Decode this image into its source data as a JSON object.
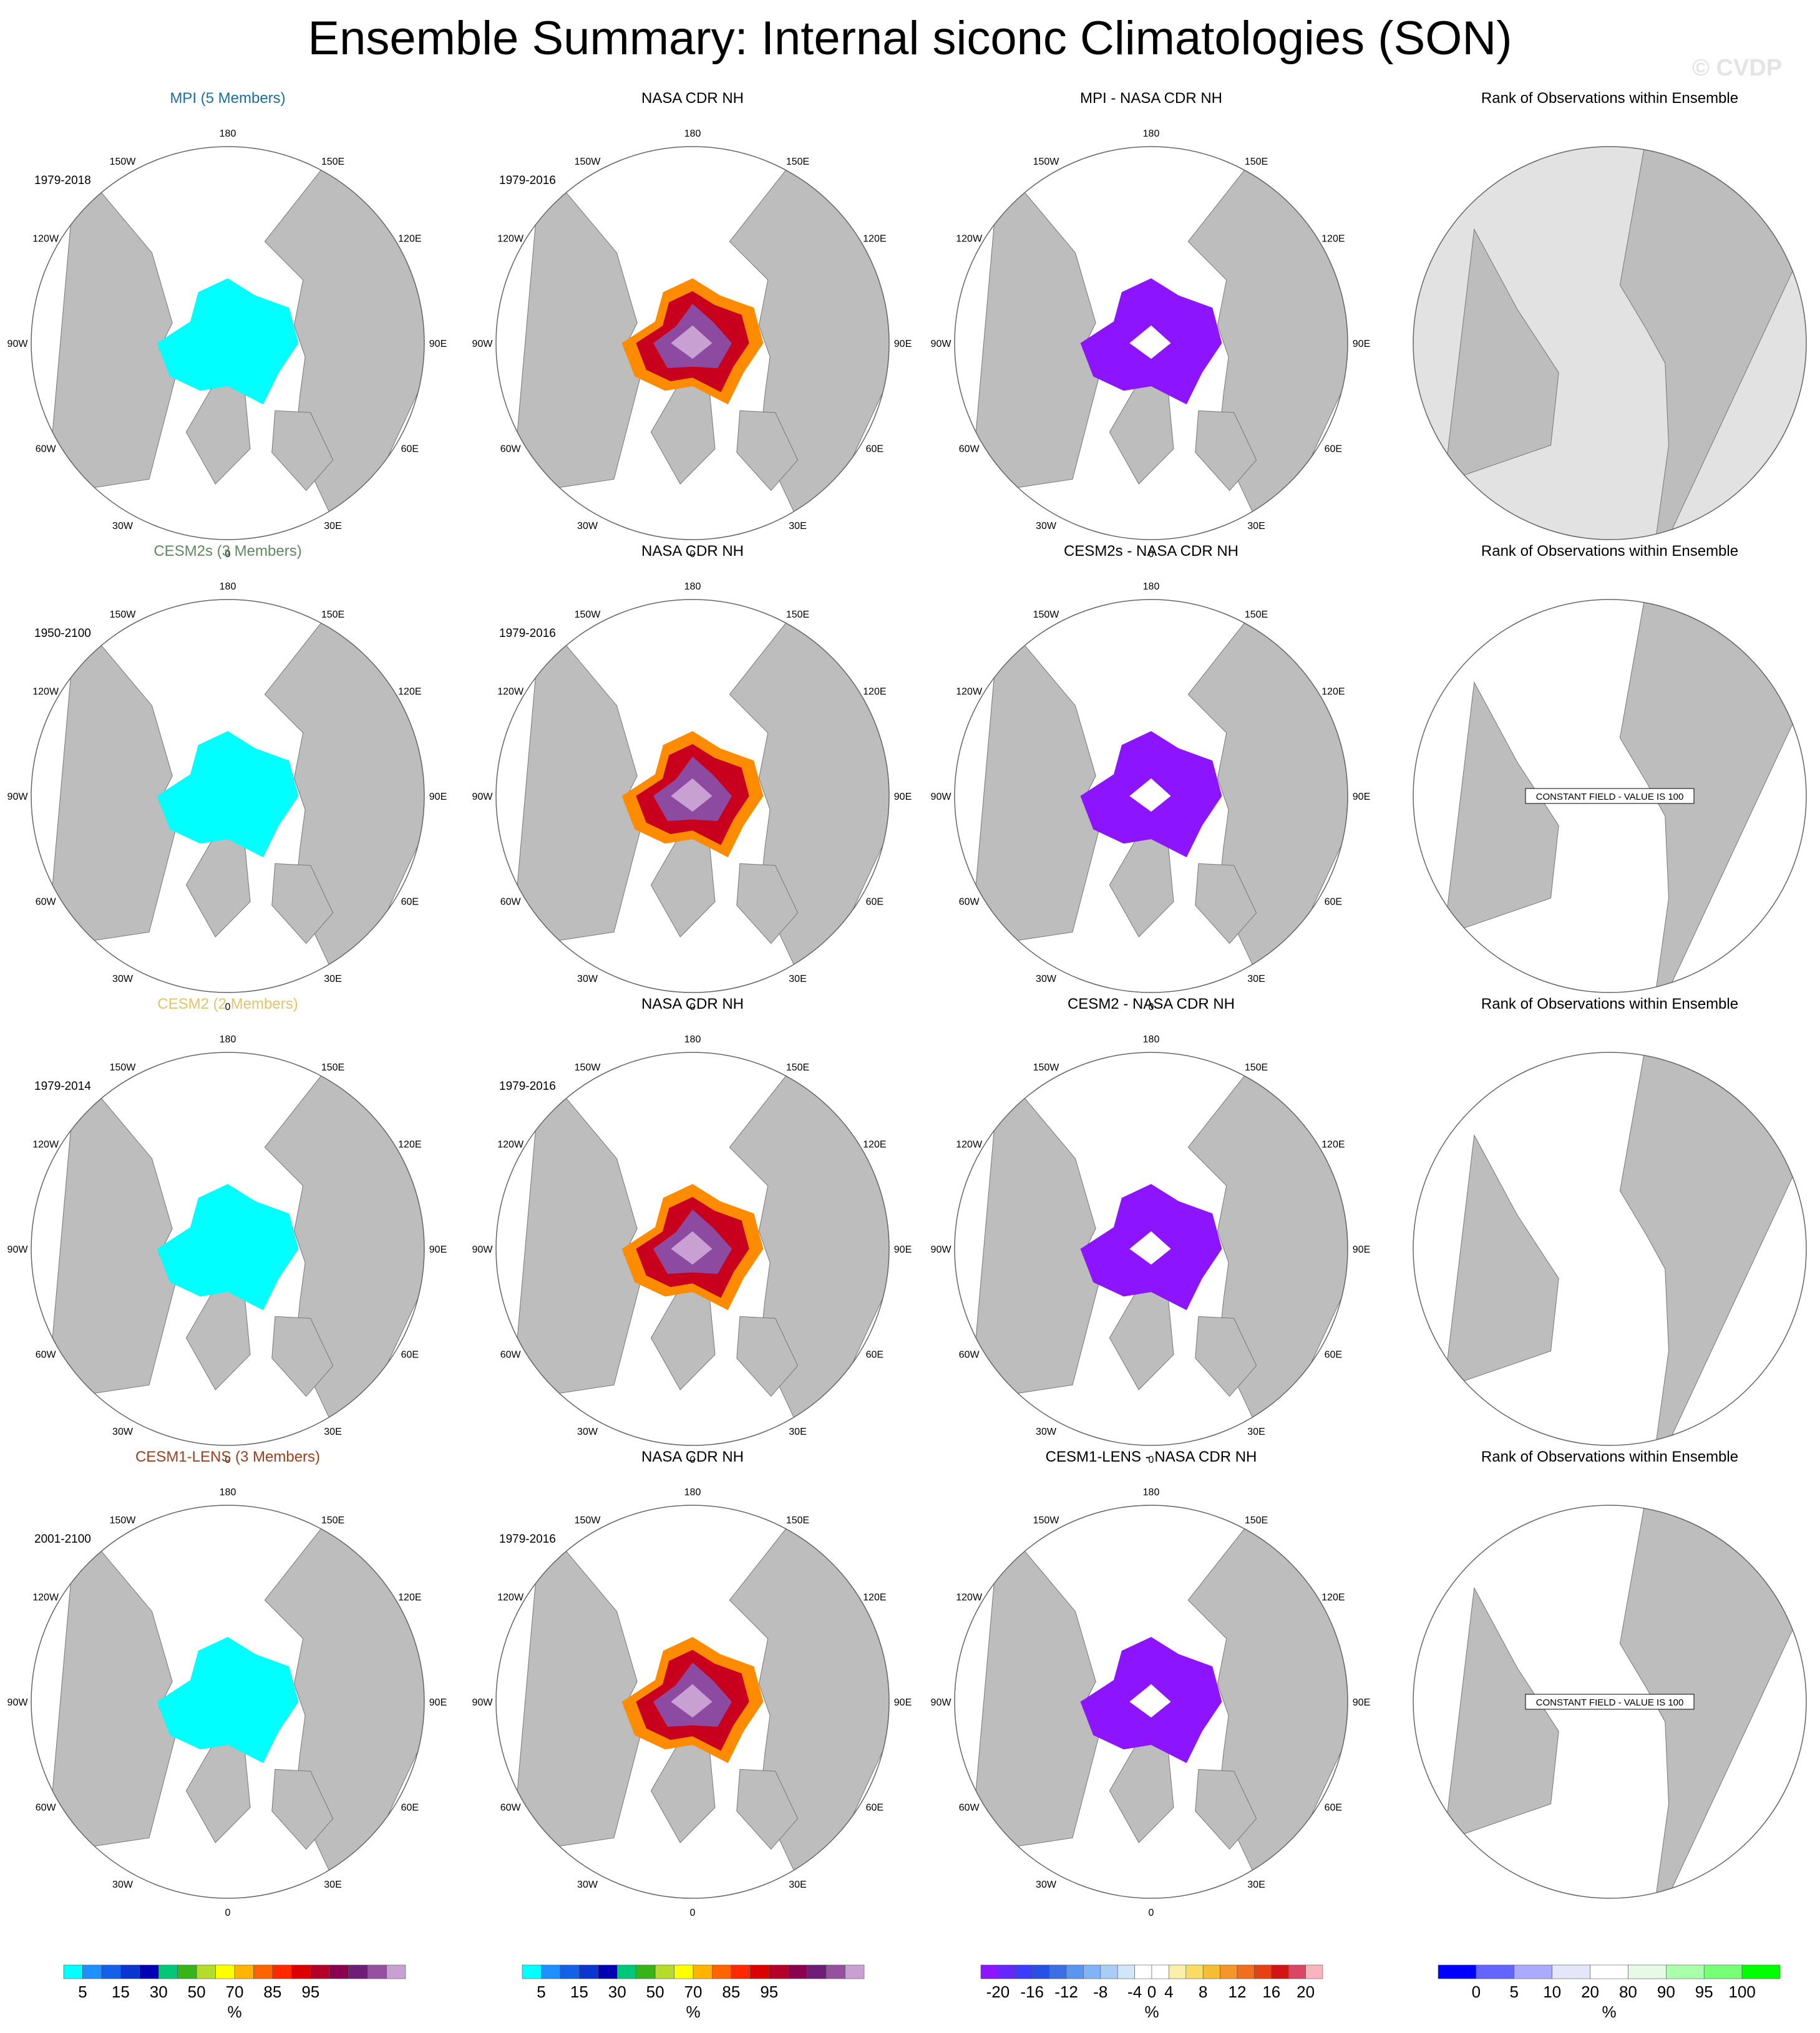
{
  "title": "Ensemble Summary: Internal siconc Climatologies (SON)",
  "watermark": "© CVDP",
  "colors": {
    "land": "#bdbdbd",
    "ocean_outline": "#888888",
    "rank_background": "#e2e2e2",
    "mpi": "#1c6f9c",
    "cesm2s": "#5f8a5f",
    "cesm2": "#e2c46a",
    "cesm1_lens": "#9c3f1e"
  },
  "map_labels": {
    "lon": [
      "180",
      "150E",
      "120E",
      "90E",
      "60E",
      "30E",
      "0",
      "30W",
      "60W",
      "90W",
      "120W",
      "150W"
    ]
  },
  "rows": [
    {
      "model": {
        "title": "MPI (5 Members)",
        "title_color": "#1c6f9c",
        "years": "1979-2018"
      },
      "obs": {
        "title": "NASA CDR NH",
        "years": "1979-2016"
      },
      "diff": {
        "title": "MPI - NASA CDR NH"
      },
      "rank": {
        "title": "Rank of Observations within Ensemble",
        "note": "",
        "style": "filled"
      }
    },
    {
      "model": {
        "title": "CESM2s (3 Members)",
        "title_color": "#5f8a5f",
        "years": "1950-2100"
      },
      "obs": {
        "title": "NASA CDR NH",
        "years": "1979-2016"
      },
      "diff": {
        "title": "CESM2s - NASA CDR NH"
      },
      "rank": {
        "title": "Rank of Observations within Ensemble",
        "note": "CONSTANT FIELD - VALUE IS 100",
        "style": "plain"
      }
    },
    {
      "model": {
        "title": "CESM2 (2 Members)",
        "title_color": "#e2c46a",
        "years": "1979-2014"
      },
      "obs": {
        "title": "NASA CDR NH",
        "years": "1979-2016"
      },
      "diff": {
        "title": "CESM2 - NASA CDR NH"
      },
      "rank": {
        "title": "Rank of Observations within Ensemble",
        "note": "",
        "style": "plain"
      }
    },
    {
      "model": {
        "title": "CESM1-LENS (3 Members)",
        "title_color": "#9c3f1e",
        "years": "2001-2100"
      },
      "obs": {
        "title": "NASA CDR NH",
        "years": "1979-2016"
      },
      "diff": {
        "title": "CESM1-LENS - NASA CDR NH"
      },
      "rank": {
        "title": "Rank of Observations within Ensemble",
        "note": "CONSTANT FIELD - VALUE IS 100",
        "style": "plain"
      }
    }
  ],
  "chart_data": [
    {
      "type": "colorbar",
      "name": "siconc",
      "unit": "%",
      "colors": [
        "#00ffff",
        "#1e90ff",
        "#1560e8",
        "#0a35d0",
        "#0000b4",
        "#00c878",
        "#38b418",
        "#b4dc28",
        "#ffff00",
        "#ffb400",
        "#ff6400",
        "#ff2800",
        "#dc0000",
        "#b40028",
        "#8c0050",
        "#6e1e78",
        "#9650a0",
        "#c8a0d2"
      ],
      "tick_labels": [
        "5",
        "15",
        "30",
        "50",
        "70",
        "85",
        "95"
      ],
      "tick_positions": [
        1,
        3,
        5,
        7,
        9,
        11,
        13
      ]
    },
    {
      "type": "colorbar",
      "name": "difference",
      "unit": "%",
      "colors": [
        "#8c14ff",
        "#6428ff",
        "#3c3cff",
        "#2850e6",
        "#3c6ee6",
        "#5a96f0",
        "#82b4f5",
        "#aacdf5",
        "#d2e6fa",
        "#ffffff",
        "#ffffff",
        "#faf0aa",
        "#fadc64",
        "#f5be32",
        "#f5962d",
        "#f06e1e",
        "#e64114",
        "#d21414",
        "#dc4664",
        "#fab4be"
      ],
      "tick_labels": [
        "-20",
        "-16",
        "-12",
        "-8",
        "-4",
        "0",
        "4",
        "8",
        "12",
        "16",
        "20"
      ],
      "tick_positions": [
        1,
        3,
        5,
        7,
        9,
        10,
        11,
        13,
        15,
        17,
        19
      ]
    },
    {
      "type": "colorbar",
      "name": "rank",
      "unit": "%",
      "colors": [
        "#0000ff",
        "#6464ff",
        "#aaaaff",
        "#e6e6fa",
        "#ffffff",
        "#e6fae6",
        "#aaffaa",
        "#78ff78",
        "#00ff00"
      ],
      "tick_labels": [
        "0",
        "5",
        "10",
        "20",
        "80",
        "90",
        "95",
        "100"
      ],
      "tick_positions": [
        1,
        2,
        3,
        4,
        5,
        6,
        7,
        8
      ]
    }
  ]
}
